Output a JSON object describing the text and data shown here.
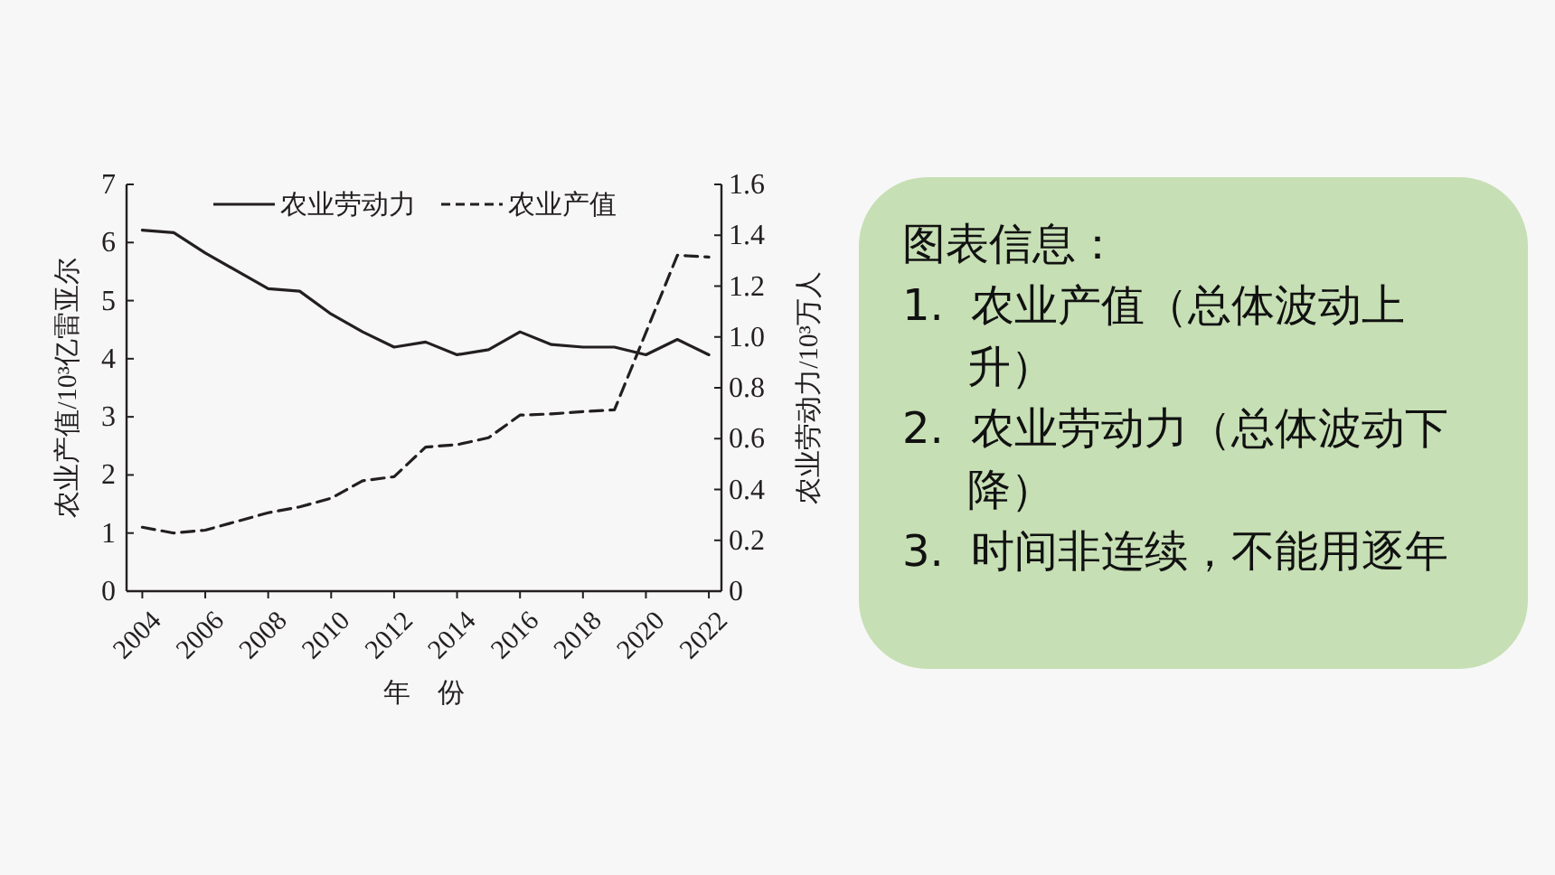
{
  "chart_data": [
    {
      "type": "line",
      "xlabel": "年　份",
      "ylabel": "农业产值/10³亿雷亚尔",
      "y2label": "农业劳动力/10³万人",
      "legend": "top",
      "grid": false,
      "marker": "none",
      "xlim": [
        2003.5,
        2022.4
      ],
      "xticks": [
        2004,
        2006,
        2008,
        2010,
        2012,
        2014,
        2016,
        2018,
        2020,
        2022
      ],
      "ylim": [
        0,
        7
      ],
      "yticks": [
        0,
        1,
        2,
        3,
        4,
        5,
        6,
        7
      ],
      "y2lim": [
        0,
        1.6
      ],
      "y2ticks": [
        0,
        {
          "value": 0.2,
          "label": "0.2"
        },
        {
          "value": 0.4,
          "label": "0.4"
        },
        {
          "value": 0.6,
          "label": "0.6"
        },
        {
          "value": 0.8,
          "label": "0.8"
        },
        {
          "value": 1,
          "label": "1.0"
        },
        {
          "value": 1.2,
          "label": "1.2"
        },
        {
          "value": 1.4,
          "label": "1.4"
        },
        {
          "value": 1.6,
          "label": "1.6"
        }
      ],
      "series": [
        {
          "name": "农业劳动力",
          "color": "#231f20",
          "axis": "y2",
          "line_style": "solid",
          "x": [
            2004,
            2005,
            2006,
            2007,
            2008,
            2009,
            2010,
            2011,
            2012,
            2013,
            2014,
            2015,
            2016,
            2017,
            2018,
            2019,
            2020,
            2021,
            2022
          ],
          "values": [
            1.42,
            1.41,
            1.33,
            1.26,
            1.19,
            1.18,
            1.09,
            1.02,
            0.96,
            0.98,
            0.93,
            0.95,
            1.02,
            0.97,
            0.96,
            0.96,
            0.93,
            0.99,
            0.93
          ]
        },
        {
          "name": "农业产值",
          "color": "#231f20",
          "axis": "y",
          "line_style": "dashed",
          "x": [
            2004,
            2005,
            2006,
            2007,
            2008,
            2009,
            2010,
            2011,
            2012,
            2013,
            2014,
            2015,
            2016,
            2017,
            2018,
            2019,
            2021,
            2022
          ],
          "values": [
            1.1,
            1.0,
            1.05,
            1.2,
            1.35,
            1.45,
            1.6,
            1.9,
            1.97,
            2.48,
            2.52,
            2.64,
            3.03,
            3.05,
            3.09,
            3.12,
            5.78,
            5.75
          ]
        }
      ]
    },
    {
      "type": "other",
      "title": "图表信息：",
      "annotations": [
        "1.  农业产值（总体波动上升）",
        "2.  农业劳动力（总体波动下降）",
        "3.  时间非连续，不能用逐年"
      ]
    }
  ]
}
